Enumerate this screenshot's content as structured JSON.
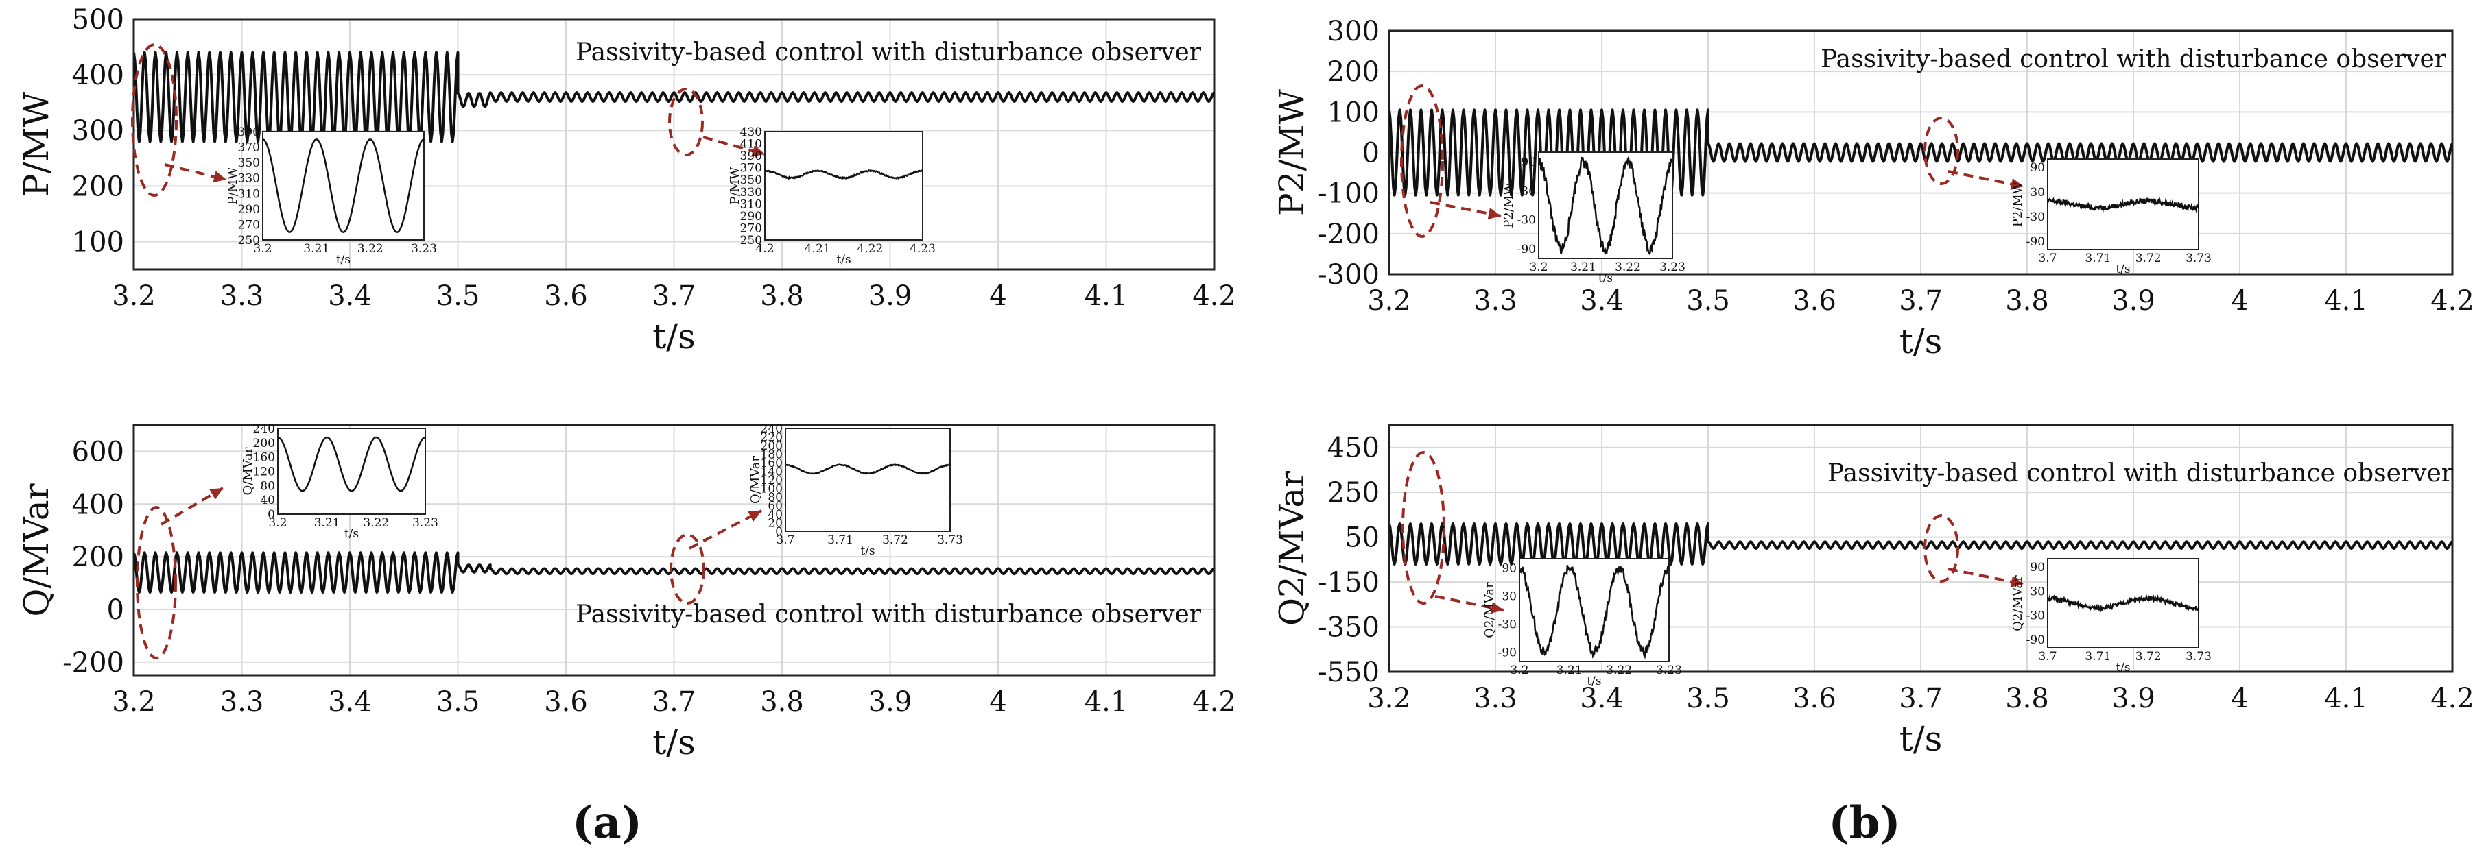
{
  "chart_data": [
    {
      "type": "line",
      "panel": "a",
      "title": "",
      "xlabel": "t/s",
      "ylabel": "P/MW",
      "xlim": [
        3.2,
        4.2
      ],
      "ylim": [
        50,
        500
      ],
      "xticks": [
        "3.2",
        "3.3",
        "3.4",
        "3.5",
        "3.6",
        "3.7",
        "3.8",
        "3.9",
        "4",
        "4.1",
        "4.2"
      ],
      "yticks": [
        "100",
        "200",
        "300",
        "400",
        "500"
      ],
      "ytick_values": [
        100,
        200,
        300,
        400,
        500
      ],
      "annotation": "Passivity-based control with disturbance observer",
      "annotation_pos": "top",
      "series": [
        {
          "name": "P",
          "segments": [
            {
              "t0": 3.2,
              "t1": 3.5,
              "mean": 360,
              "amp": 80,
              "period": 0.01
            },
            {
              "t0": 3.5,
              "t1": 3.53,
              "mean": 355,
              "amp": 12,
              "period": 0.01
            },
            {
              "t0": 3.53,
              "t1": 4.2,
              "mean": 360,
              "amp": 8,
              "period": 0.01
            }
          ]
        }
      ],
      "insets": [
        {
          "xlabel": "t/s",
          "ylabel": "P/MW",
          "xticks": [
            "3.2",
            "3.21",
            "3.22",
            "3.23"
          ],
          "yticks": [
            "250",
            "270",
            "290",
            "310",
            "330",
            "350",
            "370",
            "390"
          ],
          "ylim": [
            250,
            390
          ],
          "series": {
            "mean": 320,
            "amp": 60,
            "period": 0.01,
            "t0": 3.2,
            "t1": 3.23,
            "noise": 0
          }
        },
        {
          "xlabel": "t/s",
          "ylabel": "P/MW",
          "xticks": [
            "4.2",
            "4.21",
            "4.22",
            "4.23"
          ],
          "yticks": [
            "250",
            "270",
            "290",
            "310",
            "330",
            "350",
            "370",
            "390",
            "410",
            "430"
          ],
          "ylim": [
            250,
            430
          ],
          "series": {
            "mean": 359,
            "amp": 6,
            "period": 0.01,
            "t0": 4.2,
            "t1": 4.23,
            "noise": 1
          }
        }
      ]
    },
    {
      "type": "line",
      "panel": "a",
      "title": "",
      "xlabel": "t/s",
      "ylabel": "Q/MVar",
      "xlim": [
        3.2,
        4.2
      ],
      "ylim": [
        -250,
        700
      ],
      "xticks": [
        "3.2",
        "3.3",
        "3.4",
        "3.5",
        "3.6",
        "3.7",
        "3.8",
        "3.9",
        "4",
        "4.1",
        "4.2"
      ],
      "yticks": [
        "-200",
        "0",
        "200",
        "400",
        "600"
      ],
      "ytick_values": [
        -200,
        0,
        200,
        400,
        600
      ],
      "annotation": "Passivity-based control with disturbance observer",
      "annotation_pos": "bottom",
      "series": [
        {
          "name": "Q",
          "segments": [
            {
              "t0": 3.2,
              "t1": 3.5,
              "mean": 140,
              "amp": 75,
              "period": 0.01
            },
            {
              "t0": 3.5,
              "t1": 3.53,
              "mean": 155,
              "amp": 14,
              "period": 0.01
            },
            {
              "t0": 3.53,
              "t1": 4.2,
              "mean": 145,
              "amp": 10,
              "period": 0.01
            }
          ]
        }
      ],
      "insets": [
        {
          "xlabel": "t/s",
          "ylabel": "Q/MVar",
          "xticks": [
            "3.2",
            "3.21",
            "3.22",
            "3.23"
          ],
          "yticks": [
            "0",
            "40",
            "80",
            "120",
            "160",
            "200",
            "240"
          ],
          "ylim": [
            0,
            240
          ],
          "series": {
            "mean": 140,
            "amp": 75,
            "period": 0.01,
            "t0": 3.2,
            "t1": 3.23,
            "noise": 0
          }
        },
        {
          "xlabel": "t/s",
          "ylabel": "Q/MVar",
          "xticks": [
            "3.7",
            "3.71",
            "3.72",
            "3.73"
          ],
          "yticks": [
            "0",
            "20",
            "40",
            "60",
            "80",
            "100",
            "120",
            "140",
            "160",
            "180",
            "200",
            "220",
            "240"
          ],
          "ylim": [
            0,
            240
          ],
          "series": {
            "mean": 145,
            "amp": 10,
            "period": 0.01,
            "t0": 3.7,
            "t1": 3.73,
            "noise": 1
          }
        }
      ]
    },
    {
      "type": "line",
      "panel": "b",
      "title": "",
      "xlabel": "t/s",
      "ylabel": "P2/MW",
      "xlim": [
        3.2,
        4.2
      ],
      "ylim": [
        -300,
        300
      ],
      "xticks": [
        "3.2",
        "3.3",
        "3.4",
        "3.5",
        "3.6",
        "3.7",
        "3.8",
        "3.9",
        "4",
        "4.1",
        "4.2"
      ],
      "yticks": [
        "-300",
        "-200",
        "-100",
        "0",
        "100",
        "200",
        "300"
      ],
      "ytick_values": [
        -300,
        -200,
        -100,
        0,
        100,
        200,
        300
      ],
      "annotation": "Passivity-based control with disturbance observer",
      "annotation_pos": "top",
      "series": [
        {
          "name": "P2",
          "segments": [
            {
              "t0": 3.2,
              "t1": 3.5,
              "mean": 0,
              "amp": 105,
              "period": 0.01
            },
            {
              "t0": 3.5,
              "t1": 4.2,
              "mean": 0,
              "amp": 22,
              "period": 0.01
            }
          ]
        }
      ],
      "insets": [
        {
          "xlabel": "t/s",
          "ylabel": "P2/MW",
          "xticks": [
            "3.2",
            "3.21",
            "3.22",
            "3.23"
          ],
          "yticks": [
            "-90",
            "-30",
            "30",
            "90"
          ],
          "ylim": [
            -110,
            110
          ],
          "series": {
            "mean": 0,
            "amp": 90,
            "period": 0.01,
            "t0": 3.2,
            "t1": 3.23,
            "noise": 12
          }
        },
        {
          "xlabel": "t/s",
          "ylabel": "P2/MW",
          "xticks": [
            "3.7",
            "3.71",
            "3.72",
            "3.73"
          ],
          "yticks": [
            "-90",
            "-30",
            "30",
            "90"
          ],
          "ylim": [
            -110,
            110
          ],
          "series": {
            "mean": 0,
            "amp": 8,
            "period": 0.02,
            "t0": 3.7,
            "t1": 3.73,
            "noise": 6
          }
        }
      ]
    },
    {
      "type": "line",
      "panel": "b",
      "title": "",
      "xlabel": "t/s",
      "ylabel": "Q2/MVar",
      "xlim": [
        3.2,
        4.2
      ],
      "ylim": [
        -550,
        550
      ],
      "xticks": [
        "3.2",
        "3.3",
        "3.4",
        "3.5",
        "3.6",
        "3.7",
        "3.8",
        "3.9",
        "4",
        "4.1",
        "4.2"
      ],
      "yticks": [
        "-550",
        "-350",
        "-150",
        "50",
        "250",
        "450"
      ],
      "ytick_values": [
        -550,
        -350,
        -150,
        50,
        250,
        450
      ],
      "annotation": "Passivity-based control with disturbance observer",
      "annotation_pos": "top",
      "series": [
        {
          "name": "Q2",
          "segments": [
            {
              "t0": 3.2,
              "t1": 3.5,
              "mean": 20,
              "amp": 90,
              "period": 0.01
            },
            {
              "t0": 3.5,
              "t1": 4.2,
              "mean": 15,
              "amp": 15,
              "period": 0.01
            }
          ]
        }
      ],
      "insets": [
        {
          "xlabel": "t/s",
          "ylabel": "Q2/MVar",
          "xticks": [
            "3.2",
            "3.21",
            "3.22",
            "3.23"
          ],
          "yticks": [
            "-90",
            "-30",
            "30",
            "90"
          ],
          "ylim": [
            -110,
            110
          ],
          "series": {
            "mean": 0,
            "amp": 90,
            "period": 0.01,
            "t0": 3.2,
            "t1": 3.23,
            "noise": 10
          }
        },
        {
          "xlabel": "t/s",
          "ylabel": "Q2/MVar",
          "xticks": [
            "3.7",
            "3.71",
            "3.72",
            "3.73"
          ],
          "yticks": [
            "-90",
            "-30",
            "30",
            "90"
          ],
          "ylim": [
            -110,
            110
          ],
          "series": {
            "mean": 0,
            "amp": 12,
            "period": 0.02,
            "t0": 3.7,
            "t1": 3.73,
            "noise": 5
          }
        }
      ]
    }
  ],
  "panel_labels": {
    "a": "(a)",
    "b": "(b)"
  },
  "colors": {
    "signal": "#111111",
    "highlight": "#9b2a22",
    "grid": "#d9d9d9"
  }
}
